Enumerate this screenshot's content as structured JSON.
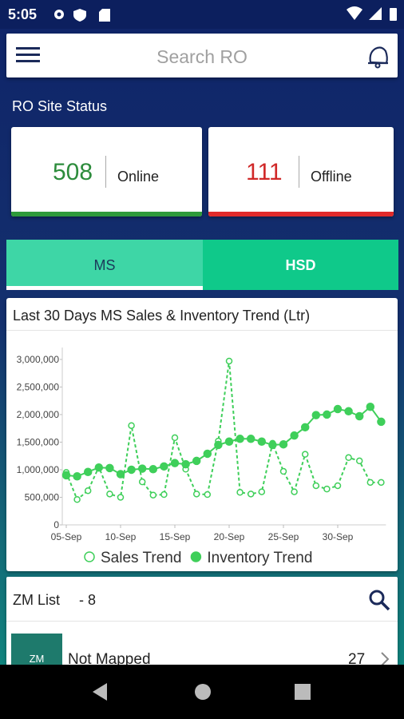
{
  "status_bar": {
    "time": "5:05"
  },
  "search": {
    "placeholder": "Search RO"
  },
  "site_status": {
    "title": "RO Site Status",
    "online": {
      "count": 508,
      "label": "Online"
    },
    "offline": {
      "count": 111,
      "label": "Offline"
    }
  },
  "tabs": [
    "MS",
    "HSD"
  ],
  "chart_data": {
    "type": "line",
    "title": "Last 30 Days MS Sales & Inventory Trend (Ltr)",
    "categories": [
      "05-Sep",
      null,
      null,
      null,
      null,
      "10-Sep",
      null,
      null,
      null,
      null,
      "15-Sep",
      null,
      null,
      null,
      null,
      "20-Sep",
      null,
      null,
      null,
      null,
      "25-Sep",
      null,
      null,
      null,
      null,
      "30-Sep",
      null,
      null,
      null,
      null
    ],
    "series": [
      {
        "name": "Sales Trend",
        "color": "#3fcf5a",
        "marker": "open",
        "values": [
          950000,
          460000,
          620000,
          1050000,
          560000,
          500000,
          1800000,
          780000,
          540000,
          550000,
          1580000,
          1010000,
          560000,
          550000,
          1520000,
          2970000,
          590000,
          560000,
          600000,
          1480000,
          970000,
          600000,
          1280000,
          710000,
          650000,
          710000,
          1220000,
          1160000,
          770000,
          770000
        ]
      },
      {
        "name": "Inventory Trend",
        "color": "#3fcf5a",
        "marker": "filled",
        "values": [
          900000,
          880000,
          960000,
          1040000,
          1030000,
          920000,
          1000000,
          1020000,
          1010000,
          1060000,
          1120000,
          1100000,
          1160000,
          1290000,
          1450000,
          1510000,
          1560000,
          1560000,
          1510000,
          1450000,
          1460000,
          1620000,
          1770000,
          1990000,
          2000000,
          2100000,
          2060000,
          1970000,
          2140000,
          1870000
        ]
      }
    ],
    "ylim": [
      0,
      3100000
    ],
    "yticks": [
      0,
      {
        "value": 500000,
        "label": "500,000"
      },
      {
        "value": 1000000,
        "label": "1,000,000"
      },
      {
        "value": 1500000,
        "label": "1,500,000"
      },
      {
        "value": 2000000,
        "label": "2,000,000"
      },
      {
        "value": 2500000,
        "label": "2,500,000"
      },
      {
        "value": 3000000,
        "label": "3,000,000"
      }
    ],
    "legend": "bottom"
  },
  "zm_list": {
    "title": "ZM List",
    "count_label": "- 8",
    "rows": [
      {
        "badge": "ZM",
        "name": "Not Mapped",
        "count": 27
      }
    ]
  }
}
